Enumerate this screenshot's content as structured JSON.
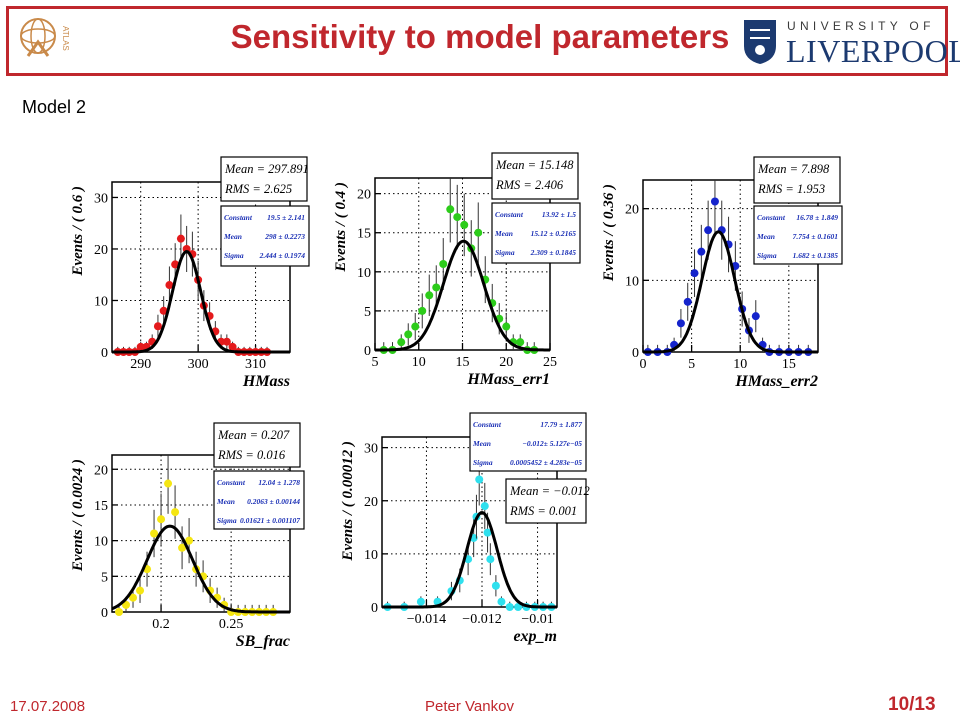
{
  "slide": {
    "title": "Sensitivity to model parameters",
    "subtitle": "Model 2",
    "date": "17.07.2008",
    "author": "Peter Vankov",
    "page": "10/13",
    "logo_left": "ATLAS",
    "logo_right_top": "UNIVERSITY OF",
    "logo_right_main": "LIVERPOOL",
    "accent_color": "#c0272d"
  },
  "chart_data": [
    {
      "type": "scatter",
      "xlabel": "HMass",
      "ylabel": "Events / ( 0.6 )",
      "xlim": [
        285,
        316
      ],
      "ylim": [
        0,
        33
      ],
      "xticks": [
        290,
        300,
        310
      ],
      "yticks": [
        0,
        10,
        20,
        30
      ],
      "color": "#e41a1c",
      "x": [
        286,
        287,
        288,
        289,
        290,
        291,
        292,
        293,
        294,
        295,
        296,
        297,
        298,
        299,
        300,
        301,
        302,
        303,
        304,
        305,
        306,
        307,
        308,
        309,
        310,
        311,
        312
      ],
      "y": [
        0,
        0,
        0,
        0,
        1,
        1,
        2,
        5,
        8,
        13,
        17,
        22,
        20,
        19,
        14,
        9,
        7,
        4,
        2,
        2,
        1,
        0,
        0,
        0,
        0,
        0,
        0
      ],
      "fit": {
        "constant": 19.5,
        "mean": 298,
        "sigma": 2.444
      },
      "stats": [
        {
          "label": "Mean = 297.891"
        },
        {
          "label": "RMS = 2.625"
        }
      ],
      "params": [
        {
          "name": "Constant",
          "value": "19.5 ± 2.141"
        },
        {
          "name": "Mean",
          "value": "298 ± 0.2273"
        },
        {
          "name": "Sigma",
          "value": "2.444 ± 0.1974"
        }
      ]
    },
    {
      "type": "scatter",
      "xlabel": "HMass_err1",
      "ylabel": "Events / ( 0.4 )",
      "xlim": [
        5,
        25
      ],
      "ylim": [
        0,
        22
      ],
      "xticks": [
        5,
        10,
        15,
        20,
        25
      ],
      "yticks": [
        0,
        5,
        10,
        15,
        20
      ],
      "color": "#2ccc1a",
      "x": [
        6,
        7,
        8,
        8.8,
        9.6,
        10.4,
        11.2,
        12,
        12.8,
        13.6,
        14.4,
        15.2,
        16,
        16.8,
        17.6,
        18.4,
        19.2,
        20,
        20.8,
        21.6,
        22.4,
        23.2
      ],
      "y": [
        0,
        0,
        1,
        2,
        3,
        5,
        7,
        8,
        11,
        18,
        17,
        16,
        13,
        15,
        9,
        6,
        4,
        3,
        1,
        1,
        0,
        0
      ],
      "fit": {
        "constant": 13.92,
        "mean": 15.12,
        "sigma": 2.309
      },
      "stats": [
        {
          "label": "Mean = 15.148"
        },
        {
          "label": "RMS = 2.406"
        }
      ],
      "params": [
        {
          "name": "Constant",
          "value": "13.92 ± 1.5"
        },
        {
          "name": "Mean",
          "value": "15.12 ± 0.2165"
        },
        {
          "name": "Sigma",
          "value": "2.309 ± 0.1845"
        }
      ]
    },
    {
      "type": "scatter",
      "xlabel": "HMass_err2",
      "ylabel": "Events / ( 0.36 )",
      "xlim": [
        0,
        18
      ],
      "ylim": [
        0,
        24
      ],
      "xticks": [
        0,
        5,
        10,
        15
      ],
      "yticks": [
        0,
        10,
        20
      ],
      "color": "#1524cc",
      "x": [
        0.5,
        1.5,
        2.5,
        3.2,
        3.9,
        4.6,
        5.3,
        6,
        6.7,
        7.4,
        8.1,
        8.8,
        9.5,
        10.2,
        10.9,
        11.6,
        12.3,
        13,
        14,
        15,
        16,
        17
      ],
      "y": [
        0,
        0,
        0,
        1,
        4,
        7,
        11,
        14,
        17,
        21,
        17,
        15,
        12,
        6,
        3,
        5,
        1,
        0,
        0,
        0,
        0,
        0
      ],
      "fit": {
        "constant": 16.78,
        "mean": 7.754,
        "sigma": 1.682
      },
      "stats": [
        {
          "label": "Mean = 7.898"
        },
        {
          "label": "RMS = 1.953"
        }
      ],
      "params": [
        {
          "name": "Constant",
          "value": "16.78 ± 1.849"
        },
        {
          "name": "Mean",
          "value": "7.754 ± 0.1601"
        },
        {
          "name": "Sigma",
          "value": "1.682 ± 0.1385"
        }
      ]
    },
    {
      "type": "scatter",
      "xlabel": "SB_frac",
      "ylabel": "Events / ( 0.0024 )",
      "xlim": [
        0.165,
        0.292
      ],
      "ylim": [
        0,
        22
      ],
      "xticks": [
        0.2,
        0.25
      ],
      "yticks": [
        0,
        5,
        10,
        15,
        20
      ],
      "color": "#f5e612",
      "x": [
        0.17,
        0.175,
        0.18,
        0.185,
        0.19,
        0.195,
        0.2,
        0.205,
        0.21,
        0.215,
        0.22,
        0.225,
        0.23,
        0.235,
        0.24,
        0.245,
        0.25,
        0.255,
        0.26,
        0.265,
        0.27,
        0.275,
        0.28
      ],
      "y": [
        0,
        1,
        2,
        3,
        6,
        11,
        13,
        18,
        14,
        9,
        10,
        6,
        5,
        3,
        2,
        1,
        0,
        0,
        0,
        0,
        0,
        0,
        0
      ],
      "fit": {
        "constant": 12.04,
        "mean": 0.2063,
        "sigma": 0.01621
      },
      "stats": [
        {
          "label": "Mean = 0.207"
        },
        {
          "label": "RMS = 0.016"
        }
      ],
      "params": [
        {
          "name": "Constant",
          "value": "12.04 ± 1.278"
        },
        {
          "name": "Mean",
          "value": "0.2063 ± 0.00144"
        },
        {
          "name": "Sigma",
          "value": "0.01621 ± 0.001107"
        }
      ]
    },
    {
      "type": "scatter",
      "xlabel": "exp_m",
      "ylabel": "Events / ( 0.00012 )",
      "xlim": [
        -0.0156,
        -0.0093
      ],
      "ylim": [
        0,
        32
      ],
      "xticks": [
        -0.014,
        -0.012,
        -0.01
      ],
      "yticks": [
        0,
        10,
        20,
        30
      ],
      "color": "#2fe0ee",
      "x": [
        -0.0154,
        -0.0148,
        -0.0142,
        -0.0136,
        -0.0131,
        -0.0128,
        -0.0125,
        -0.0123,
        -0.0122,
        -0.0121,
        -0.0119,
        -0.0118,
        -0.0117,
        -0.0115,
        -0.0113,
        -0.011,
        -0.0107,
        -0.0104,
        -0.0101,
        -0.0098,
        -0.0095
      ],
      "y": [
        0,
        0,
        1,
        1,
        3,
        5,
        9,
        13,
        17,
        24,
        19,
        14,
        9,
        4,
        1,
        0,
        0,
        0,
        0,
        0,
        0
      ],
      "fit": {
        "constant": 17.79,
        "mean": -0.012,
        "sigma": 0.0005452
      },
      "stats": [
        {
          "label": "Mean = −0.012"
        },
        {
          "label": "RMS = 0.001"
        }
      ],
      "params": [
        {
          "name": "Constant",
          "value": "17.79 ± 1.877"
        },
        {
          "name": "Mean",
          "value": "−0.012± 5.127e−05"
        },
        {
          "name": "Sigma",
          "value": "0.0005452 ± 4.283e−05"
        }
      ]
    }
  ]
}
